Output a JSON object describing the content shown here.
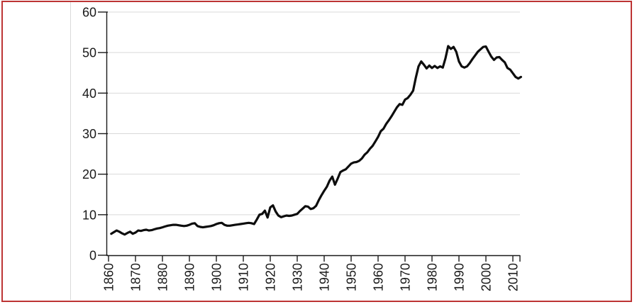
{
  "window": {
    "background": "#ffffff",
    "border_color": "#bd3434",
    "divider_color": "#d9d9d9"
  },
  "chart_data": {
    "type": "line",
    "title": "",
    "xlabel": "",
    "ylabel": "",
    "legend": "none",
    "grid": "horizontal",
    "grid_color": "#d9d9d9",
    "axis_color": "#1a1a1a",
    "xlim": [
      1860,
      2013
    ],
    "ylim": [
      0,
      60
    ],
    "x_axis": {
      "ticks": [
        1860,
        1870,
        1880,
        1890,
        1900,
        1910,
        1920,
        1930,
        1940,
        1950,
        1960,
        1970,
        1980,
        1990,
        2000,
        2010
      ],
      "tick_labels": [
        "1860",
        "1870",
        "1880",
        "1890",
        "1900",
        "1910",
        "1920",
        "1930",
        "1940",
        "1950",
        "1960",
        "1970",
        "1980",
        "1990",
        "2000",
        "2010"
      ],
      "label_rotation_deg": -90
    },
    "y_axis": {
      "ticks": [
        0,
        10,
        20,
        30,
        40,
        50,
        60
      ],
      "tick_labels": [
        "0",
        "10",
        "20",
        "30",
        "40",
        "50",
        "60"
      ]
    },
    "series": [
      {
        "name": "value",
        "color": "#0d0d0d",
        "stroke_width": 3.2,
        "x": [
          1861,
          1862,
          1863,
          1864,
          1865,
          1866,
          1867,
          1868,
          1869,
          1870,
          1871,
          1872,
          1873,
          1874,
          1875,
          1876,
          1877,
          1878,
          1879,
          1880,
          1881,
          1882,
          1883,
          1884,
          1885,
          1886,
          1887,
          1888,
          1889,
          1890,
          1891,
          1892,
          1893,
          1894,
          1895,
          1896,
          1897,
          1898,
          1899,
          1900,
          1901,
          1902,
          1903,
          1904,
          1905,
          1906,
          1907,
          1908,
          1909,
          1910,
          1911,
          1912,
          1913,
          1914,
          1915,
          1916,
          1917,
          1918,
          1919,
          1920,
          1921,
          1922,
          1923,
          1924,
          1925,
          1926,
          1927,
          1928,
          1929,
          1930,
          1931,
          1932,
          1933,
          1934,
          1935,
          1936,
          1937,
          1938,
          1939,
          1940,
          1941,
          1942,
          1943,
          1944,
          1945,
          1946,
          1947,
          1948,
          1949,
          1950,
          1951,
          1952,
          1953,
          1954,
          1955,
          1956,
          1957,
          1958,
          1959,
          1960,
          1961,
          1962,
          1963,
          1964,
          1965,
          1966,
          1967,
          1968,
          1969,
          1970,
          1971,
          1972,
          1973,
          1974,
          1975,
          1976,
          1977,
          1978,
          1979,
          1980,
          1981,
          1982,
          1983,
          1984,
          1985,
          1986,
          1987,
          1988,
          1989,
          1990,
          1991,
          1992,
          1993,
          1994,
          1995,
          1996,
          1997,
          1998,
          1999,
          2000,
          2001,
          2002,
          2003,
          2004,
          2005,
          2006,
          2007,
          2008,
          2009,
          2010,
          2011,
          2012,
          2013
        ],
        "y": [
          5.3,
          5.7,
          6.1,
          5.8,
          5.4,
          5.1,
          5.5,
          5.8,
          5.3,
          5.6,
          6.1,
          6.0,
          6.2,
          6.3,
          6.1,
          6.2,
          6.4,
          6.6,
          6.7,
          6.9,
          7.1,
          7.3,
          7.4,
          7.5,
          7.5,
          7.4,
          7.3,
          7.2,
          7.3,
          7.5,
          7.8,
          7.9,
          7.2,
          7.0,
          6.9,
          7.0,
          7.1,
          7.2,
          7.4,
          7.7,
          7.9,
          8.0,
          7.5,
          7.3,
          7.3,
          7.4,
          7.5,
          7.6,
          7.7,
          7.8,
          7.9,
          8.0,
          7.9,
          7.7,
          8.8,
          10.0,
          10.2,
          11.0,
          9.3,
          11.8,
          12.3,
          10.8,
          9.8,
          9.4,
          9.6,
          9.8,
          9.7,
          9.8,
          10.0,
          10.2,
          10.9,
          11.5,
          12.1,
          12.0,
          11.4,
          11.6,
          12.2,
          13.6,
          14.8,
          15.9,
          16.9,
          18.4,
          19.4,
          17.4,
          18.9,
          20.5,
          20.9,
          21.2,
          21.9,
          22.6,
          22.9,
          23.0,
          23.3,
          23.9,
          24.8,
          25.4,
          26.3,
          27.0,
          28.1,
          29.2,
          30.6,
          31.2,
          32.4,
          33.3,
          34.3,
          35.4,
          36.5,
          37.3,
          37.1,
          38.4,
          38.8,
          39.6,
          40.6,
          43.8,
          46.6,
          47.8,
          47.0,
          46.1,
          46.8,
          46.2,
          46.7,
          46.2,
          46.6,
          46.3,
          48.6,
          51.6,
          50.9,
          51.4,
          50.2,
          47.8,
          46.6,
          46.3,
          46.6,
          47.4,
          48.4,
          49.3,
          50.2,
          50.8,
          51.4,
          51.5,
          50.2,
          49.0,
          48.2,
          48.8,
          48.9,
          48.2,
          47.6,
          46.2,
          45.8,
          44.9,
          44.0,
          43.6,
          44.0
        ]
      }
    ]
  }
}
